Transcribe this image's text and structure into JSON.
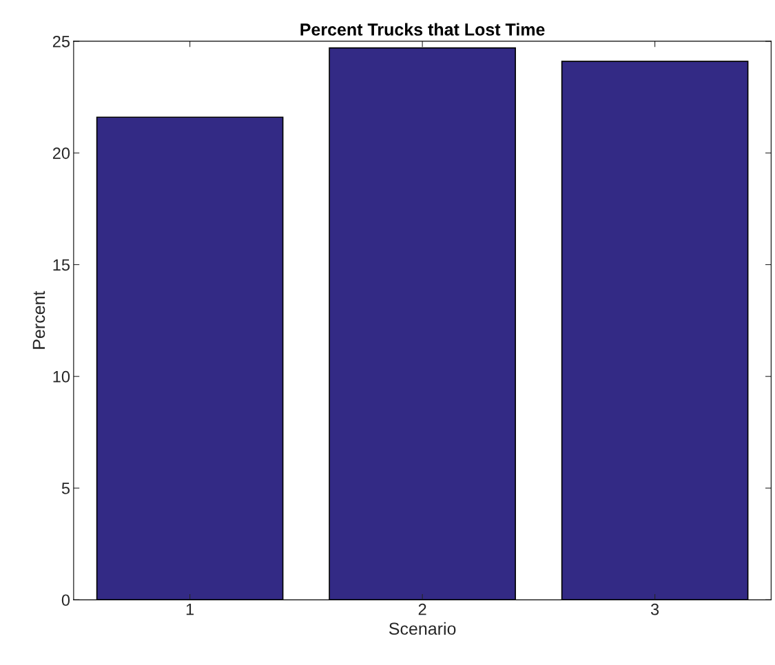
{
  "chart_data": {
    "type": "bar",
    "title": "Percent Trucks that Lost Time",
    "xlabel": "Scenario",
    "ylabel": "Percent",
    "categories": [
      "1",
      "2",
      "3"
    ],
    "values": [
      21.6,
      24.7,
      24.1
    ],
    "color": "#332a85",
    "ylim": [
      0,
      25
    ],
    "yticks": [
      0,
      5,
      10,
      15,
      20,
      25
    ],
    "grid": false,
    "legend": false
  }
}
